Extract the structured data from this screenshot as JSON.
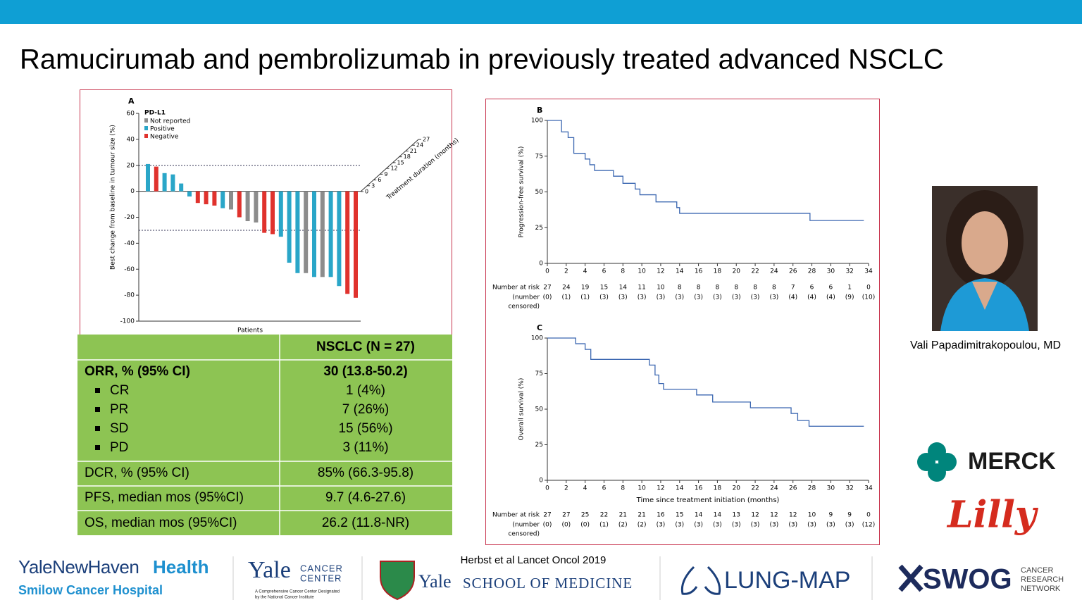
{
  "header": {
    "title": "Ramucirumab and pembrolizumab in previously treated advanced NSCLC"
  },
  "waterfall": {
    "panel": "A",
    "legend_title": "PD-L1",
    "legend": [
      {
        "name": "Not reported",
        "color": "#8c8c8c"
      },
      {
        "name": "Positive",
        "color": "#2aa6c8"
      },
      {
        "name": "Negative",
        "color": "#e0322d"
      }
    ],
    "y_label": "Best change from baseline in tumour size (%)",
    "ylim": [
      -100,
      60
    ],
    "yticks": [
      -100,
      -80,
      -60,
      -40,
      -20,
      0,
      20,
      40,
      60
    ],
    "reference_lines": [
      20,
      -30
    ],
    "x_label": "Patients",
    "duration_label": "Treatment duration (months)",
    "duration_ticks": [
      0,
      3,
      6,
      9,
      12,
      15,
      18,
      21,
      24,
      27
    ],
    "values": [
      21,
      19,
      14,
      13,
      6,
      -4,
      -9,
      -10,
      -11,
      -13,
      -14,
      -20,
      -23,
      -24,
      -32,
      -33,
      -35,
      -55,
      -63,
      -63,
      -66,
      -66,
      -66,
      -73,
      -79,
      -82
    ],
    "groups": [
      1,
      2,
      1,
      1,
      1,
      1,
      2,
      2,
      2,
      1,
      0,
      2,
      0,
      0,
      2,
      2,
      1,
      1,
      1,
      0,
      1,
      0,
      1,
      1,
      2,
      2
    ]
  },
  "table": {
    "header": "NSCLC (N = 27)",
    "rows": [
      {
        "label": "ORR, % (95% CI)",
        "value": "30 (13.8-50.2)",
        "bold": true
      },
      {
        "label": "CR",
        "value": "1 (4%)",
        "bullet": true
      },
      {
        "label": "PR",
        "value": "7 (26%)",
        "bullet": true
      },
      {
        "label": "SD",
        "value": "15 (56%)",
        "bullet": true
      },
      {
        "label": "PD",
        "value": "3 (11%)",
        "bullet": true
      },
      {
        "label": "DCR, % (95% CI)",
        "value": "85% (66.3-95.8)"
      },
      {
        "label": "PFS, median mos (95%CI)",
        "value": "9.7 (4.6-27.6)"
      },
      {
        "label": "OS, median mos (95%CI)",
        "value": "26.2 (11.8-NR)"
      }
    ]
  },
  "km_b": {
    "panel": "B",
    "y_label": "Progression-free survival (%)",
    "xlim": [
      0,
      34
    ],
    "xticks": [
      0,
      2,
      4,
      6,
      8,
      10,
      12,
      14,
      16,
      18,
      20,
      22,
      24,
      26,
      28,
      30,
      32,
      34
    ],
    "ylim": [
      0,
      100
    ],
    "yticks": [
      0,
      25,
      50,
      75,
      100
    ],
    "x": [
      0,
      1.5,
      1.5,
      2.2,
      2.2,
      2.8,
      2.8,
      4,
      4,
      4.5,
      4.5,
      5,
      5,
      7,
      7,
      8,
      8,
      9.3,
      9.3,
      9.8,
      9.8,
      11.5,
      11.5,
      13.7,
      13.7,
      14,
      14,
      27.8,
      27.8,
      33.5
    ],
    "y": [
      100,
      100,
      92,
      92,
      88,
      88,
      77,
      77,
      73,
      73,
      69,
      69,
      65,
      65,
      61,
      61,
      56,
      56,
      52,
      52,
      48,
      48,
      43,
      43,
      39,
      39,
      35,
      35,
      30,
      30
    ],
    "risk_label": "Number at risk",
    "censored_label": [
      "(number",
      "censored)"
    ],
    "at_risk": [
      27,
      24,
      19,
      15,
      14,
      11,
      10,
      8,
      8,
      8,
      8,
      8,
      8,
      7,
      6,
      6,
      1,
      0
    ],
    "censored": [
      "(0)",
      "(1)",
      "(1)",
      "(3)",
      "(3)",
      "(3)",
      "(3)",
      "(3)",
      "(3)",
      "(3)",
      "(3)",
      "(3)",
      "(3)",
      "(4)",
      "(4)",
      "(4)",
      "(9)",
      "(10)"
    ]
  },
  "km_c": {
    "panel": "C",
    "y_label": "Overall survival (%)",
    "x_label": "Time since treatment initiation (months)",
    "xlim": [
      0,
      34
    ],
    "xticks": [
      0,
      2,
      4,
      6,
      8,
      10,
      12,
      14,
      16,
      18,
      20,
      22,
      24,
      26,
      28,
      30,
      32,
      34
    ],
    "ylim": [
      0,
      100
    ],
    "yticks": [
      0,
      25,
      50,
      75,
      100
    ],
    "x": [
      0,
      3,
      3,
      4,
      4,
      4.6,
      4.6,
      10.8,
      10.8,
      11.4,
      11.4,
      11.8,
      11.8,
      12.3,
      12.3,
      15.8,
      15.8,
      17.5,
      17.5,
      21.5,
      21.5,
      25.8,
      25.8,
      26.5,
      26.5,
      27.7,
      27.7,
      33.5
    ],
    "y": [
      100,
      100,
      96,
      96,
      92,
      92,
      85,
      85,
      81,
      81,
      74,
      74,
      68,
      68,
      64,
      64,
      60,
      60,
      55,
      55,
      51,
      51,
      47,
      47,
      42,
      42,
      38,
      38
    ],
    "risk_label": "Number at risk",
    "censored_label": [
      "(number",
      "censored)"
    ],
    "at_risk": [
      27,
      27,
      25,
      22,
      21,
      21,
      16,
      15,
      14,
      14,
      13,
      12,
      12,
      12,
      10,
      9,
      9,
      0
    ],
    "censored": [
      "(0)",
      "(0)",
      "(0)",
      "(1)",
      "(2)",
      "(2)",
      "(3)",
      "(3)",
      "(3)",
      "(3)",
      "(3)",
      "(3)",
      "(3)",
      "(3)",
      "(3)",
      "(3)",
      "(3)",
      "(12)"
    ]
  },
  "presenter": {
    "name": "Vali Papadimitrakopoulou, MD"
  },
  "citation": "Herbst et al Lancet Oncol 2019",
  "logos": {
    "ynhh": "YaleNewHaven",
    "ynhh_bold": "Health",
    "smilow": "Smilow Cancer Hospital",
    "yale": "Yale",
    "ycc": [
      "CANCER",
      "CENTER"
    ],
    "ycc_sub": [
      "A Comprehensive Cancer Center Designated",
      "by the National Cancer Institute"
    ],
    "ysm_yale": "Yale",
    "ysm": "SCHOOL OF MEDICINE",
    "lungmap": "LUNG-MAP",
    "swog": "SWOG",
    "swog_sub": [
      "CANCER",
      "RESEARCH",
      "NETWORK"
    ],
    "merck": "MERCK",
    "lilly": "Lilly"
  }
}
